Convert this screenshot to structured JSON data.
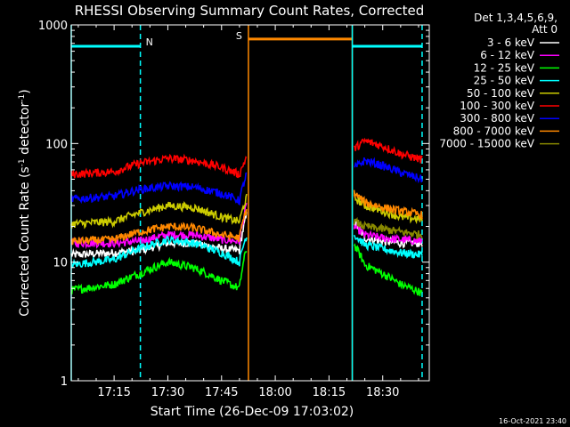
{
  "chart_data": {
    "type": "line",
    "title": "RHESSI Observing Summary Count Rates, Corrected",
    "xlabel": "Start Time (26-Dec-09 17:03:02)",
    "ylabel": "Corrected Count Rate (s⁻¹ detector⁻¹)",
    "ylabel_main": "Corrected Count Rate (s",
    "ylabel_sup1": "-1",
    "ylabel_mid": " detector",
    "ylabel_sup2": "-1",
    "ylabel_end": ")",
    "y_scale": "log",
    "ylim": [
      1,
      1000
    ],
    "xlim": [
      "17:03:02",
      "18:43:00"
    ],
    "x_ticks": [
      "17:15",
      "17:30",
      "17:45",
      "18:00",
      "18:15",
      "18:30"
    ],
    "y_ticks": [
      "1",
      "10",
      "100",
      "1000"
    ],
    "grid": false,
    "timestamp": "16-Oct-2021 23:40",
    "legend": {
      "placement": "right",
      "header1": "Det 1,3,4,5,6,9,",
      "header2": "Att 0",
      "entries": [
        {
          "label": "3 - 6 keV",
          "color": "#ffffff"
        },
        {
          "label": "6 - 12 keV",
          "color": "#ff00ff"
        },
        {
          "label": "12 - 25 keV",
          "color": "#00ff00"
        },
        {
          "label": "25 - 50 keV",
          "color": "#00ffff"
        },
        {
          "label": "50 - 100 keV",
          "color": "#cccc00"
        },
        {
          "label": "100 - 300 keV",
          "color": "#ff0000"
        },
        {
          "label": "300 - 800 keV",
          "color": "#0000ff"
        },
        {
          "label": "800 - 7000 keV",
          "color": "#ff8800"
        },
        {
          "label": "7000 - 15000 keV",
          "color": "#888800"
        }
      ]
    },
    "annotations": [
      {
        "text": "N",
        "color": "#00ffff"
      },
      {
        "text": "S",
        "color": "#ff8800"
      }
    ],
    "intervals": [
      {
        "type": "night",
        "color": "#00ffff",
        "start": "17:03:02",
        "end": "17:22:20",
        "level": 660
      },
      {
        "type": "saa",
        "color": "#ff8800",
        "start": "17:52:30",
        "end": "18:21:30",
        "level": 760
      },
      {
        "type": "night",
        "color": "#00ffff",
        "start": "18:21:30",
        "end": "18:41:00",
        "level": 660
      }
    ],
    "series": [
      {
        "name": "3 - 6 keV",
        "color": "#ffffff",
        "x": [
          "17:03",
          "17:15",
          "17:22",
          "17:30",
          "17:37",
          "17:45",
          "17:50",
          "17:52",
          "18:21",
          "18:22",
          "18:25",
          "18:30",
          "18:35",
          "18:41"
        ],
        "values": [
          11.5,
          12,
          12.5,
          14.5,
          14.5,
          13,
          12.5,
          25,
          null,
          22,
          16,
          15,
          14.5,
          14.5
        ]
      },
      {
        "name": "6 - 12 keV",
        "color": "#ff00ff",
        "x": [
          "17:03",
          "17:15",
          "17:22",
          "17:30",
          "17:37",
          "17:45",
          "17:50",
          "17:52",
          "18:21",
          "18:22",
          "18:25",
          "18:30",
          "18:35",
          "18:41"
        ],
        "values": [
          14.5,
          14.5,
          15,
          17,
          17,
          15.5,
          15,
          30,
          null,
          20,
          17,
          16,
          15.5,
          15
        ]
      },
      {
        "name": "12 - 25 keV",
        "color": "#00ff00",
        "x": [
          "17:03",
          "17:15",
          "17:22",
          "17:30",
          "17:37",
          "17:45",
          "17:50",
          "17:52",
          "18:21",
          "18:22",
          "18:25",
          "18:30",
          "18:35",
          "18:41"
        ],
        "values": [
          5.8,
          6.5,
          8,
          10,
          9,
          7,
          6,
          13,
          null,
          14,
          9.5,
          8,
          6.5,
          5.5
        ]
      },
      {
        "name": "25 - 50 keV",
        "color": "#00ffff",
        "x": [
          "17:03",
          "17:15",
          "17:22",
          "17:30",
          "17:37",
          "17:45",
          "17:50",
          "17:52",
          "18:21",
          "18:22",
          "18:25",
          "18:30",
          "18:35",
          "18:41"
        ],
        "values": [
          9.5,
          10.5,
          13,
          15.5,
          14.5,
          12,
          10,
          17,
          null,
          17,
          14,
          13,
          12,
          11.5
        ]
      },
      {
        "name": "50 - 100 keV",
        "color": "#cccc00",
        "x": [
          "17:03",
          "17:15",
          "17:22",
          "17:30",
          "17:37",
          "17:45",
          "17:50",
          "17:52",
          "18:21",
          "18:22",
          "18:25",
          "18:30",
          "18:35",
          "18:41"
        ],
        "values": [
          21,
          22,
          26,
          30,
          29,
          24,
          22,
          35,
          null,
          35,
          30,
          27,
          24,
          23
        ]
      },
      {
        "name": "100 - 300 keV",
        "color": "#ff0000",
        "x": [
          "17:03",
          "17:15",
          "17:22",
          "17:30",
          "17:37",
          "17:45",
          "17:50",
          "17:52",
          "18:21",
          "18:22",
          "18:25",
          "18:30",
          "18:35",
          "18:41"
        ],
        "values": [
          55,
          58,
          68,
          75,
          72,
          63,
          55,
          77,
          null,
          90,
          105,
          95,
          82,
          73
        ]
      },
      {
        "name": "300 - 800 keV",
        "color": "#0000ff",
        "x": [
          "17:03",
          "17:15",
          "17:22",
          "17:30",
          "17:37",
          "17:45",
          "17:50",
          "17:52",
          "18:21",
          "18:22",
          "18:25",
          "18:30",
          "18:35",
          "18:41"
        ],
        "values": [
          34,
          36,
          41,
          44,
          43,
          38,
          33,
          55,
          null,
          62,
          72,
          65,
          57,
          50
        ]
      },
      {
        "name": "800 - 7000 keV",
        "color": "#ff8800",
        "x": [
          "17:03",
          "17:15",
          "17:22",
          "17:30",
          "17:37",
          "17:45",
          "17:50",
          "17:52",
          "18:21",
          "18:22",
          "18:25",
          "18:30",
          "18:35",
          "18:41"
        ],
        "values": [
          15,
          15.5,
          18,
          20,
          19.5,
          17,
          16,
          28,
          null,
          38,
          32,
          29,
          27,
          25
        ]
      },
      {
        "name": "7000 - 15000 keV",
        "color": "#888800",
        "x": [
          "17:03",
          "17:15",
          "17:22",
          "17:30",
          "17:37",
          "17:45",
          "17:50",
          "17:52",
          "18:21",
          "18:22",
          "18:25",
          "18:30",
          "18:35",
          "18:41"
        ],
        "values": [
          null,
          null,
          null,
          null,
          null,
          null,
          null,
          null,
          null,
          22,
          20,
          19,
          18,
          17
        ]
      }
    ]
  }
}
